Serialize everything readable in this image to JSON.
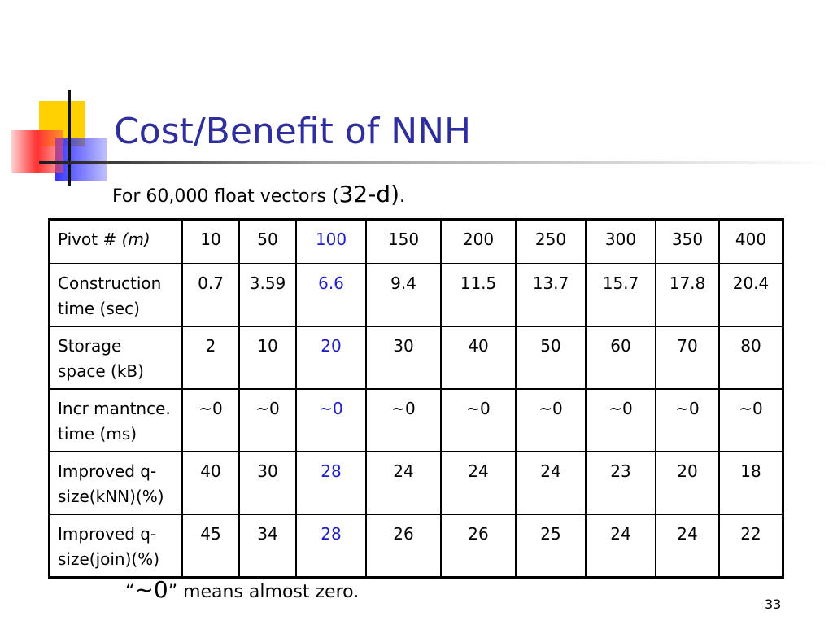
{
  "slide": {
    "title": "Cost/Benefit of NNH",
    "subtitle_prefix": "For 60,000 float vectors (",
    "subtitle_emph": "32-d)",
    "subtitle_suffix": ".",
    "note_open_quote": "“",
    "note_emph": "~0",
    "note_rest": "” means almost zero.",
    "page_number": "33",
    "highlight_color": "#1f1fc8",
    "title_color": "#2e2e9e"
  },
  "table": {
    "header": {
      "label_text": "Pivot # ",
      "label_italic": "(m)",
      "values": [
        "10",
        "50",
        "100",
        "150",
        "200",
        "250",
        "300",
        "350",
        "400"
      ]
    },
    "rows": [
      {
        "label_line1": "Construction",
        "label_line2": "time (sec)",
        "values": [
          "0.7",
          "3.59",
          "6.6",
          "9.4",
          "11.5",
          "13.7",
          "15.7",
          "17.8",
          "20.4"
        ]
      },
      {
        "label_line1": "Storage",
        "label_line2": "space (kB)",
        "values": [
          "2",
          "10",
          "20",
          "30",
          "40",
          "50",
          "60",
          "70",
          "80"
        ]
      },
      {
        "label_line1": "Incr mantnce.",
        "label_line2": "time (ms)",
        "values": [
          "~0",
          "~0",
          "~0",
          "~0",
          "~0",
          "~0",
          "~0",
          "~0",
          "~0"
        ]
      },
      {
        "label_line1": "Improved q-",
        "label_line2": "size(kNN)(%)",
        "values": [
          "40",
          "30",
          "28",
          "24",
          "24",
          "24",
          "23",
          "20",
          "18"
        ]
      },
      {
        "label_line1": "Improved q-",
        "label_line2": "size(join)(%)",
        "values": [
          "45",
          "34",
          "28",
          "26",
          "26",
          "25",
          "24",
          "24",
          "22"
        ]
      }
    ]
  }
}
